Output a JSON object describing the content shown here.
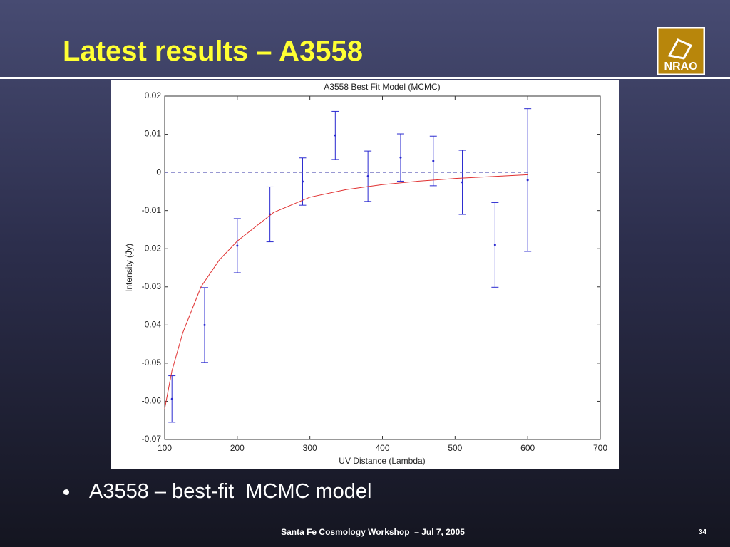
{
  "slide_title": "Latest results – A3558",
  "logo_text": "NRAO",
  "bullet": "A3558 – best-fit  MCMC model",
  "footer": "Santa Fe Cosmology Workshop  – Jul 7, 2005",
  "page_number": "34",
  "chart_data": {
    "type": "scatter",
    "title": "A3558 Best Fit Model (MCMC)",
    "x_label": "UV Distance (Lambda)",
    "y_label": "Intensity (Jy)",
    "xlim": [
      100,
      700
    ],
    "ylim": [
      -0.07,
      0.02
    ],
    "xticks": [
      100,
      200,
      300,
      400,
      500,
      600,
      700
    ],
    "yticks": [
      0.02,
      0.01,
      0,
      -0.01,
      -0.02,
      -0.03,
      -0.04,
      -0.05,
      -0.06,
      -0.07
    ],
    "grid": false,
    "series": [
      {
        "style": "errorbar",
        "color": "#2a2ad0",
        "x": [
          110,
          155,
          200,
          245,
          290,
          335,
          380,
          425,
          470,
          510,
          555,
          600
        ],
        "values": [
          -0.0594,
          -0.04,
          -0.0192,
          -0.011,
          -0.0024,
          0.0097,
          -0.001,
          0.0039,
          0.003,
          -0.0026,
          -0.019,
          -0.002
        ],
        "errors": [
          0.0061,
          0.0098,
          0.0071,
          0.0072,
          0.0062,
          0.0063,
          0.0066,
          0.0062,
          0.0065,
          0.0084,
          0.0111,
          0.0187
        ]
      },
      {
        "style": "line",
        "color": "#e03030",
        "x": [
          100,
          110,
          125,
          150,
          175,
          200,
          250,
          300,
          350,
          400,
          450,
          500,
          550,
          600
        ],
        "values": [
          -0.062,
          -0.052,
          -0.042,
          -0.03,
          -0.023,
          -0.018,
          -0.0105,
          -0.0065,
          -0.0045,
          -0.0032,
          -0.0023,
          -0.0016,
          -0.0011,
          -0.0006
        ]
      },
      {
        "style": "dashed",
        "color": "#5a5ab8",
        "x": [
          100,
          600
        ],
        "values": [
          0,
          0
        ]
      }
    ]
  }
}
